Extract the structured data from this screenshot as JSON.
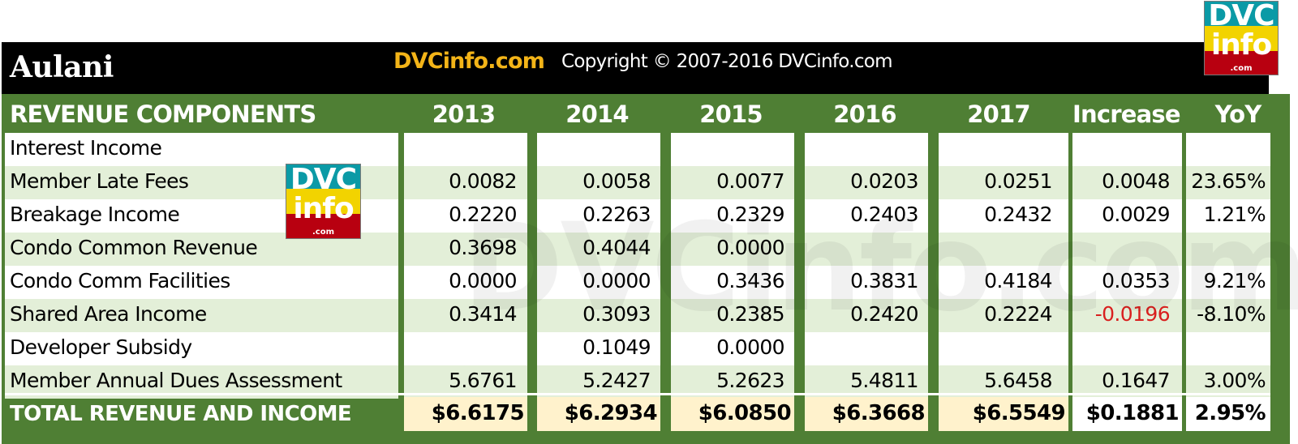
{
  "header": {
    "title": "Aulani",
    "site": "DVCinfo.com",
    "copyright": "Copyright © 2007-2016 DVCinfo.com"
  },
  "logo": {
    "line1": "DVC",
    "line2": "info",
    "line3": ".com"
  },
  "watermark": "DVCinfo.com",
  "colors": {
    "header_green": "#4f7f34",
    "band": "#e3efd8",
    "total_fill": "#fff2cc",
    "negative": "#d9201f",
    "site_text": "#f3b418"
  },
  "chart_data": {
    "type": "table",
    "columns": [
      "REVENUE COMPONENTS",
      "2013",
      "2014",
      "2015",
      "2016",
      "2017",
      "Increase",
      "YoY"
    ],
    "rows": [
      {
        "label": "Interest Income",
        "values": [
          "",
          "",
          "",
          "",
          "",
          "",
          ""
        ]
      },
      {
        "label": "Member Late Fees",
        "values": [
          "0.0082",
          "0.0058",
          "0.0077",
          "0.0203",
          "0.0251",
          "0.0048",
          "23.65%"
        ]
      },
      {
        "label": "Breakage Income",
        "values": [
          "0.2220",
          "0.2263",
          "0.2329",
          "0.2403",
          "0.2432",
          "0.0029",
          "1.21%"
        ]
      },
      {
        "label": "Condo Common Revenue",
        "values": [
          "0.3698",
          "0.4044",
          "0.0000",
          "",
          "",
          "",
          ""
        ]
      },
      {
        "label": "Condo Comm Facilities",
        "values": [
          "0.0000",
          "0.0000",
          "0.3436",
          "0.3831",
          "0.4184",
          "0.0353",
          "9.21%"
        ]
      },
      {
        "label": "Shared Area Income",
        "values": [
          "0.3414",
          "0.3093",
          "0.2385",
          "0.2420",
          "0.2224",
          "-0.0196",
          "-8.10%"
        ]
      },
      {
        "label": "Developer Subsidy",
        "values": [
          "",
          "0.1049",
          "0.0000",
          "",
          "",
          "",
          ""
        ]
      },
      {
        "label": "Member Annual Dues Assessment",
        "values": [
          "5.6761",
          "5.2427",
          "5.2623",
          "5.4811",
          "5.6458",
          "0.1647",
          "3.00%"
        ]
      }
    ],
    "total": {
      "label": "TOTAL REVENUE AND INCOME",
      "values": [
        "$6.6175",
        "$6.2934",
        "$6.0850",
        "$6.3668",
        "$6.5549",
        "$0.1881",
        "2.95%"
      ]
    }
  }
}
